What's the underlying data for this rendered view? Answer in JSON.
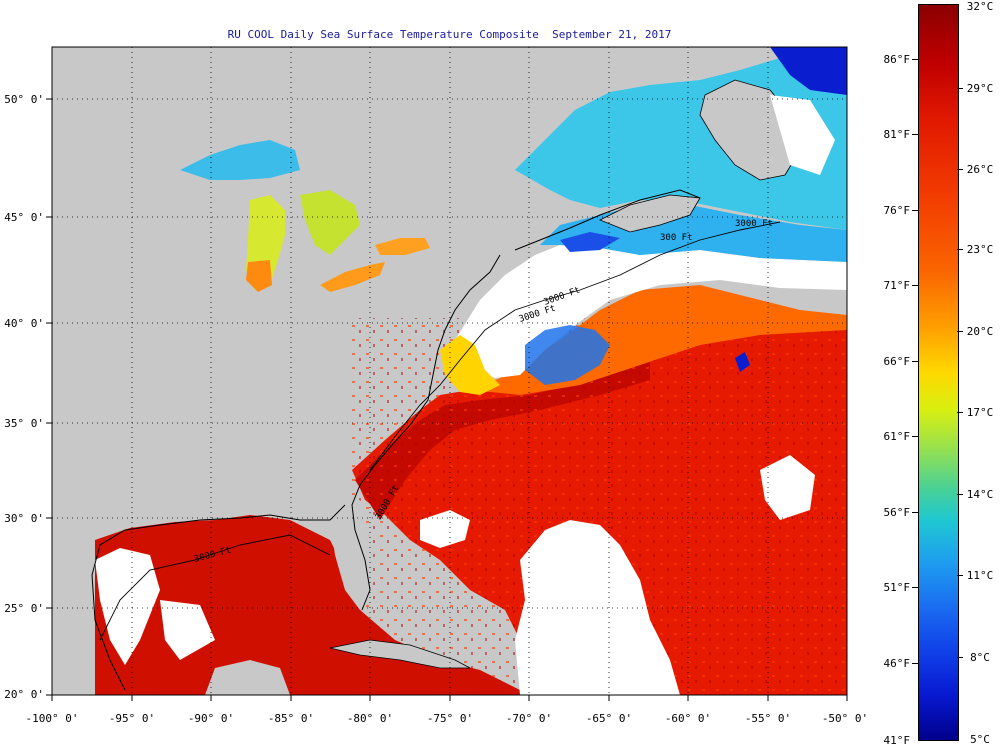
{
  "title": "RU COOL Daily Sea Surface Temperature Composite  September 21, 2017",
  "lat_labels": [
    "50° 0'",
    "45° 0'",
    "40° 0'",
    "35° 0'",
    "30° 0'",
    "25° 0'",
    "20° 0'"
  ],
  "lon_labels": [
    "-100° 0'",
    "-95° 0'",
    "-90° 0'",
    "-85° 0'",
    "-80° 0'",
    "-75° 0'",
    "-70° 0'",
    "-65° 0'",
    "-60° 0'",
    "-55° 0'",
    "-50° 0'"
  ],
  "legend": {
    "fahrenheit": [
      "86°F",
      "81°F",
      "76°F",
      "71°F",
      "66°F",
      "61°F",
      "56°F",
      "51°F",
      "46°F",
      "41°F"
    ],
    "celsius": [
      "32°C",
      "29°C",
      "26°C",
      "23°C",
      "20°C",
      "17°C",
      "14°C",
      "11°C",
      "8°C",
      "5°C"
    ]
  },
  "contour_labels": [
    "3000 Ft",
    "3000 Ft",
    "3000 Ft",
    "3000 Ft",
    "3000 Ft",
    "300 Ft"
  ],
  "colors": {
    "land": "#c8c8c8",
    "cloud": "#ffffff",
    "warm": "#e51a00",
    "hot": "#c40a00",
    "orange": "#ff6a00",
    "cool": "#39c3ee",
    "cold": "#1240e8",
    "title": "#1a1a9c"
  }
}
